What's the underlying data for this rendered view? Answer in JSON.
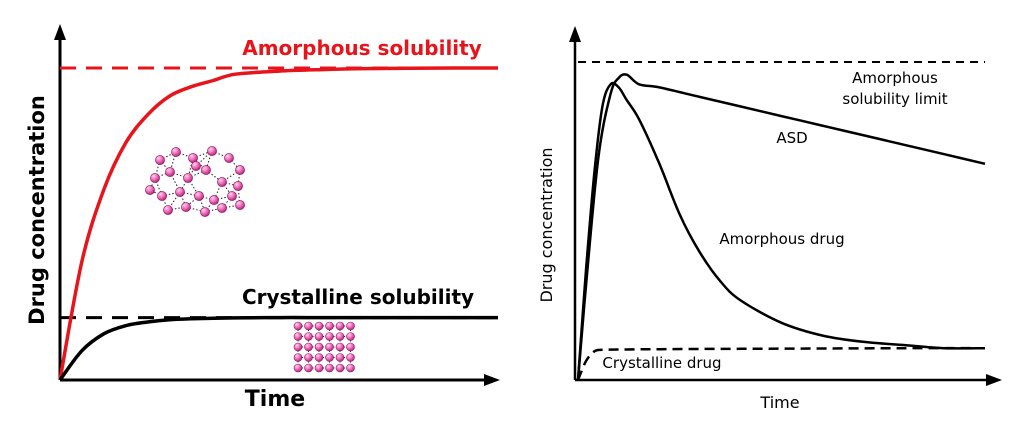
{
  "chart_data": [
    {
      "type": "line",
      "xlabel": "Time",
      "ylabel": "Drug concentration",
      "xlim": [
        0,
        100
      ],
      "ylim": [
        0,
        100
      ],
      "grid": false,
      "reference_lines": [
        {
          "label": "Amorphous solubility",
          "y": 100,
          "style": "dashed",
          "color": "#e8141c"
        },
        {
          "label": "Crystalline solubility",
          "y": 20,
          "style": "dashed",
          "color": "#000000"
        }
      ],
      "series": [
        {
          "color": "#e8141c",
          "x": [
            0,
            5,
            10,
            15,
            20,
            25,
            30,
            35,
            40,
            50,
            60,
            70,
            80,
            90,
            100
          ],
          "y": [
            0,
            38,
            61,
            76,
            85,
            91,
            94,
            96,
            98,
            99,
            99.5,
            99.8,
            99.9,
            100,
            100
          ]
        },
        {
          "color": "#000000",
          "x": [
            0,
            5,
            10,
            15,
            20,
            25,
            30,
            40,
            50,
            60,
            70,
            80,
            90,
            100
          ],
          "y": [
            0,
            9.4,
            14.8,
            17.4,
            18.6,
            19.3,
            19.6,
            19.9,
            20,
            20,
            20,
            20,
            20,
            20
          ]
        }
      ]
    },
    {
      "type": "line",
      "xlabel": "Time",
      "ylabel": "Drug concentration",
      "xlim": [
        0,
        100
      ],
      "ylim": [
        0,
        100
      ],
      "grid": false,
      "reference_lines": [
        {
          "label": "Amorphous solubility limit",
          "y": 100,
          "style": "dashed",
          "color": "#000000"
        }
      ],
      "series": [
        {
          "name": "ASD",
          "style": "solid",
          "color": "#000000",
          "x": [
            0,
            2,
            5,
            8,
            10,
            12,
            15,
            20,
            30,
            40,
            50,
            60,
            70,
            80,
            90,
            100
          ],
          "y": [
            0,
            30,
            70,
            90,
            95,
            96,
            93,
            92,
            89,
            86,
            83,
            80,
            77,
            74,
            71,
            68
          ]
        },
        {
          "name": "Amorphous drug",
          "style": "solid",
          "color": "#000000",
          "x": [
            0,
            2,
            4,
            6,
            8,
            10,
            12,
            15,
            20,
            25,
            30,
            35,
            40,
            50,
            60,
            70,
            80,
            90,
            100
          ],
          "y": [
            0,
            35,
            65,
            86,
            93,
            92,
            88,
            82,
            68,
            52,
            40,
            31,
            25,
            18,
            14,
            12,
            11,
            10,
            10
          ]
        },
        {
          "name": "Crystalline drug",
          "style": "dashed",
          "color": "#000000",
          "x": [
            0,
            2,
            4,
            6,
            10,
            20,
            40,
            60,
            80,
            100
          ],
          "y": [
            0,
            6,
            9,
            9.5,
            9.6,
            9.7,
            9.8,
            9.9,
            10,
            10
          ]
        }
      ]
    }
  ]
}
